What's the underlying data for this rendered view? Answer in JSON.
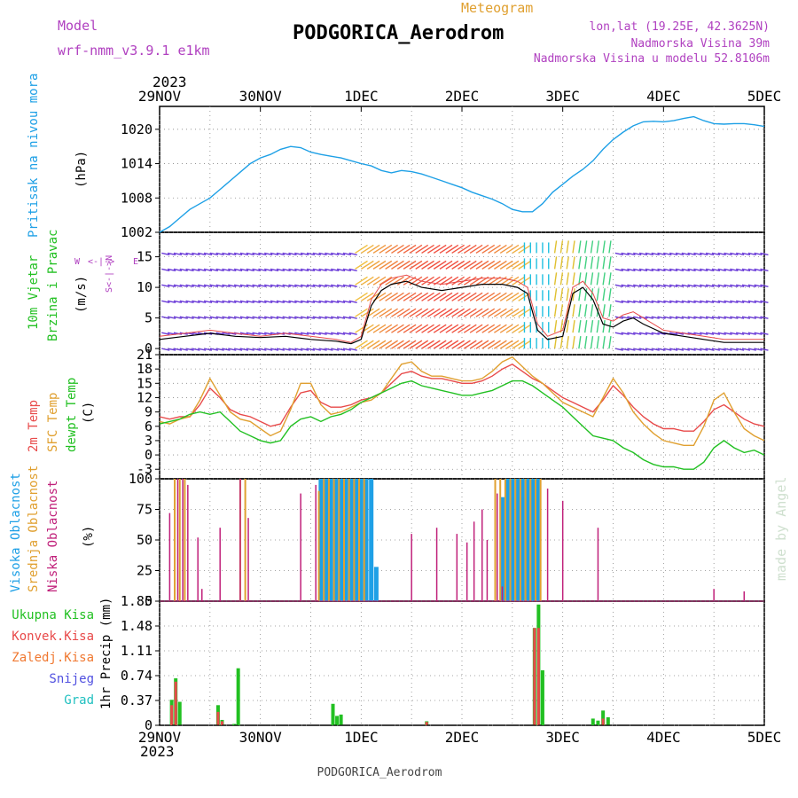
{
  "header": {
    "model_label": "Model",
    "model_name": "wrf-nmm_v3.9.1  e1km",
    "title": "PODGORICA_Aerodrom",
    "kind": "Meteogram",
    "lonlat": "lon,lat (19.25E, 42.3625N)",
    "elevation": "Nadmorska Visina 39m",
    "model_elevation": "Nadmorska Visina u modelu 52.8106m",
    "bottom_title": "PODGORICA_Aerodrom",
    "credit": "made by Angel"
  },
  "colors": {
    "pressure": "#1ea0e6",
    "wind_label": "#22c022",
    "temp2m": "#e84a4a",
    "sfc": "#e0a030",
    "dewpt": "#22c022",
    "cloud_high": "#1ea0e6",
    "cloud_mid": "#e0a030",
    "cloud_low": "#c0207a",
    "rain_total": "#22c022",
    "rain_conv": "#e84a4a",
    "rain_frz": "#f07830",
    "snow": "#5050e0",
    "hail": "#20c0c0",
    "purple": "#b040c0"
  },
  "time_axis": {
    "year": "2023",
    "labels": [
      "29NOV",
      "30NOV",
      "1DEC",
      "2DEC",
      "3DEC",
      "4DEC",
      "5DEC"
    ]
  },
  "chart_data": [
    {
      "type": "line",
      "panel": "pressure",
      "ylabel": "Pritisak na nivou mora",
      "unit": "(hPa)",
      "ylim": [
        1002,
        1024
      ],
      "yticks": [
        1002,
        1008,
        1014,
        1020
      ],
      "x": [
        0,
        0.1,
        0.2,
        0.3,
        0.4,
        0.5,
        0.6,
        0.7,
        0.8,
        0.9,
        1.0,
        1.1,
        1.2,
        1.3,
        1.4,
        1.5,
        1.6,
        1.7,
        1.8,
        1.9,
        2.0,
        2.1,
        2.2,
        2.3,
        2.4,
        2.5,
        2.6,
        2.7,
        2.8,
        2.9,
        3.0,
        3.1,
        3.2,
        3.3,
        3.4,
        3.5,
        3.6,
        3.7,
        3.8,
        3.9,
        4.0,
        4.1,
        4.2,
        4.3,
        4.4,
        4.5,
        4.6,
        4.7,
        4.8,
        4.9,
        5.0,
        5.1,
        5.2,
        5.3,
        5.4,
        5.5,
        5.6,
        5.7,
        5.8,
        5.9,
        6.0
      ],
      "values": [
        1002.0,
        1003.0,
        1004.5,
        1006.0,
        1007.0,
        1008.0,
        1009.5,
        1011.0,
        1012.5,
        1014.0,
        1015.0,
        1015.6,
        1016.5,
        1017.0,
        1016.8,
        1016.0,
        1015.6,
        1015.3,
        1015.0,
        1014.5,
        1014.0,
        1013.6,
        1012.8,
        1012.4,
        1012.8,
        1012.6,
        1012.2,
        1011.6,
        1011.0,
        1010.4,
        1009.8,
        1009.0,
        1008.4,
        1007.8,
        1007.0,
        1006.0,
        1005.6,
        1005.6,
        1007.0,
        1009.0,
        1010.4,
        1011.8,
        1013.0,
        1014.5,
        1016.5,
        1018.2,
        1019.5,
        1020.6,
        1021.3,
        1021.4,
        1021.3,
        1021.5,
        1021.9,
        1022.2,
        1021.5,
        1021.0,
        1020.9,
        1021.0,
        1021.0,
        1020.8,
        1020.5
      ]
    },
    {
      "type": "line",
      "panel": "wind",
      "ylabel": "10m Vjetar Brzina i Pravac",
      "unit": "(m/s)",
      "direction_legend": [
        "N",
        "<-",
        "|",
        "->",
        "W",
        "E",
        "S"
      ],
      "ylim": [
        -1,
        19
      ],
      "yticks": [
        0,
        5,
        10,
        15
      ],
      "x": [
        0,
        0.25,
        0.5,
        0.75,
        1.0,
        1.25,
        1.5,
        1.75,
        1.9,
        2.0,
        2.1,
        2.2,
        2.3,
        2.45,
        2.6,
        2.8,
        3.0,
        3.2,
        3.4,
        3.55,
        3.65,
        3.75,
        3.85,
        4.0,
        4.1,
        4.2,
        4.3,
        4.4,
        4.5,
        4.6,
        4.7,
        4.8,
        5.0,
        5.2,
        5.4,
        5.6,
        5.8,
        6.0
      ],
      "values": [
        1.5,
        2.0,
        2.5,
        2.0,
        1.8,
        2.0,
        1.5,
        1.2,
        0.8,
        1.5,
        7.0,
        9.5,
        10.5,
        11.0,
        10.0,
        9.5,
        10.0,
        10.5,
        10.5,
        10.0,
        9.0,
        3.0,
        1.5,
        2.0,
        9.0,
        10.0,
        8.0,
        4.0,
        3.5,
        4.5,
        5.0,
        4.0,
        2.5,
        2.0,
        1.5,
        1.0,
        1.0,
        1.0
      ],
      "gust_values": [
        2.0,
        2.5,
        3.0,
        2.5,
        2.0,
        2.5,
        2.0,
        1.5,
        1.0,
        2.0,
        8.0,
        10.5,
        11.5,
        12.0,
        11.0,
        10.5,
        11.0,
        11.5,
        11.5,
        11.0,
        10.0,
        4.0,
        2.0,
        3.0,
        10.0,
        11.0,
        9.0,
        5.0,
        4.5,
        5.5,
        6.0,
        5.0,
        3.0,
        2.5,
        2.0,
        1.5,
        1.5,
        1.5
      ]
    },
    {
      "type": "line",
      "panel": "temperature",
      "ylabel": "2m Temp / SFC Temp / dewpt Temp",
      "unit": "(C)",
      "ylim": [
        -5,
        21
      ],
      "yticks": [
        -3,
        0,
        3,
        6,
        9,
        12,
        15,
        18,
        21
      ],
      "series": [
        {
          "name": "2m Temp",
          "x": [
            0,
            0.1,
            0.2,
            0.3,
            0.4,
            0.5,
            0.6,
            0.7,
            0.8,
            0.9,
            1.0,
            1.1,
            1.2,
            1.3,
            1.4,
            1.5,
            1.6,
            1.7,
            1.8,
            1.9,
            2.0,
            2.1,
            2.2,
            2.3,
            2.4,
            2.5,
            2.6,
            2.7,
            2.8,
            2.9,
            3.0,
            3.1,
            3.2,
            3.3,
            3.4,
            3.5,
            3.6,
            3.7,
            3.8,
            3.9,
            4.0,
            4.1,
            4.2,
            4.3,
            4.4,
            4.5,
            4.6,
            4.7,
            4.8,
            4.9,
            5.0,
            5.1,
            5.2,
            5.3,
            5.4,
            5.5,
            5.6,
            5.7,
            5.8,
            5.9,
            6.0
          ],
          "values": [
            8.0,
            7.5,
            8.0,
            8.0,
            10.5,
            14.0,
            12.0,
            9.5,
            8.5,
            8.0,
            7.0,
            6.0,
            6.5,
            10.0,
            13.0,
            13.5,
            11.0,
            10.0,
            10.0,
            10.5,
            11.5,
            12.0,
            13.0,
            15.0,
            17.0,
            17.5,
            16.5,
            16.0,
            16.0,
            15.5,
            15.0,
            15.0,
            15.5,
            16.5,
            18.0,
            19.0,
            17.5,
            16.0,
            15.0,
            13.5,
            12.0,
            11.0,
            10.0,
            9.0,
            11.5,
            14.5,
            12.5,
            10.0,
            8.0,
            6.5,
            5.5,
            5.5,
            5.0,
            5.0,
            7.0,
            9.5,
            10.5,
            9.0,
            7.5,
            6.5,
            6.0
          ]
        },
        {
          "name": "SFC Temp",
          "x": [
            0,
            0.1,
            0.2,
            0.3,
            0.4,
            0.5,
            0.6,
            0.7,
            0.8,
            0.9,
            1.0,
            1.1,
            1.2,
            1.3,
            1.4,
            1.5,
            1.6,
            1.7,
            1.8,
            1.9,
            2.0,
            2.1,
            2.2,
            2.3,
            2.4,
            2.5,
            2.6,
            2.7,
            2.8,
            2.9,
            3.0,
            3.1,
            3.2,
            3.3,
            3.4,
            3.5,
            3.6,
            3.7,
            3.8,
            3.9,
            4.0,
            4.1,
            4.2,
            4.3,
            4.4,
            4.5,
            4.6,
            4.7,
            4.8,
            4.9,
            5.0,
            5.1,
            5.2,
            5.3,
            5.4,
            5.5,
            5.6,
            5.7,
            5.8,
            5.9,
            6.0
          ],
          "values": [
            7.0,
            6.5,
            7.5,
            8.0,
            11.5,
            16.0,
            12.5,
            9.0,
            7.5,
            7.0,
            5.5,
            4.0,
            5.0,
            9.5,
            15.0,
            15.0,
            10.5,
            8.5,
            9.0,
            10.0,
            11.0,
            11.5,
            13.0,
            16.0,
            19.0,
            19.5,
            17.5,
            16.5,
            16.5,
            16.0,
            15.5,
            15.5,
            16.0,
            17.5,
            19.5,
            20.5,
            18.5,
            16.5,
            15.0,
            13.0,
            11.0,
            10.0,
            9.0,
            8.0,
            12.0,
            16.0,
            13.0,
            9.0,
            6.5,
            4.5,
            3.0,
            2.5,
            2.0,
            2.0,
            6.0,
            11.5,
            13.0,
            9.0,
            5.5,
            4.0,
            3.0
          ]
        },
        {
          "name": "dewpt Temp",
          "x": [
            0,
            0.1,
            0.2,
            0.3,
            0.4,
            0.5,
            0.6,
            0.7,
            0.8,
            0.9,
            1.0,
            1.1,
            1.2,
            1.3,
            1.4,
            1.5,
            1.6,
            1.7,
            1.8,
            1.9,
            2.0,
            2.1,
            2.2,
            2.3,
            2.4,
            2.5,
            2.6,
            2.7,
            2.8,
            2.9,
            3.0,
            3.1,
            3.2,
            3.3,
            3.4,
            3.5,
            3.6,
            3.7,
            3.8,
            3.9,
            4.0,
            4.1,
            4.2,
            4.3,
            4.4,
            4.5,
            4.6,
            4.7,
            4.8,
            4.9,
            5.0,
            5.1,
            5.2,
            5.3,
            5.4,
            5.5,
            5.6,
            5.7,
            5.8,
            5.9,
            6.0
          ],
          "values": [
            6.5,
            7.0,
            7.5,
            8.5,
            9.0,
            8.5,
            9.0,
            7.0,
            5.0,
            4.0,
            3.0,
            2.5,
            3.0,
            6.0,
            7.5,
            8.0,
            7.0,
            8.0,
            8.5,
            9.5,
            11.0,
            12.0,
            13.0,
            14.0,
            15.0,
            15.5,
            14.5,
            14.0,
            13.5,
            13.0,
            12.5,
            12.5,
            13.0,
            13.5,
            14.5,
            15.5,
            15.5,
            14.5,
            13.0,
            11.5,
            10.0,
            8.0,
            6.0,
            4.0,
            3.5,
            3.0,
            1.5,
            0.5,
            -1.0,
            -2.0,
            -2.5,
            -2.5,
            -3.0,
            -3.0,
            -1.5,
            1.5,
            3.0,
            1.5,
            0.5,
            1.0,
            0.0
          ]
        }
      ]
    },
    {
      "type": "bar",
      "panel": "clouds",
      "ylabel": "Visoka Oblacnost / Srednja Oblacnost / Niska Oblacnost",
      "unit": "(%)",
      "ylim": [
        0,
        100
      ],
      "yticks": [
        0,
        25,
        50,
        75,
        100
      ],
      "series": [
        {
          "name": "Visoka Oblacnost",
          "x": [
            1.6,
            1.65,
            1.7,
            1.75,
            1.8,
            1.85,
            1.9,
            1.95,
            2.0,
            2.05,
            2.1,
            2.15,
            3.4,
            3.45,
            3.5,
            3.55,
            3.6,
            3.65,
            3.7,
            3.75
          ],
          "values": [
            100,
            100,
            100,
            100,
            100,
            100,
            100,
            100,
            100,
            100,
            100,
            28,
            85,
            100,
            100,
            100,
            100,
            100,
            100,
            100
          ]
        },
        {
          "name": "Srednja Oblacnost",
          "x": [
            0.15,
            0.2,
            0.25,
            0.8,
            0.85,
            1.58,
            1.63,
            1.68,
            1.73,
            1.78,
            1.83,
            1.88,
            1.93,
            1.98,
            2.03,
            3.33,
            3.38,
            3.43,
            3.48,
            3.53,
            3.58,
            3.63,
            3.68,
            3.73,
            3.78
          ],
          "values": [
            100,
            100,
            100,
            100,
            100,
            90,
            100,
            100,
            100,
            100,
            100,
            100,
            100,
            100,
            100,
            100,
            100,
            100,
            100,
            100,
            100,
            100,
            100,
            100,
            100
          ]
        },
        {
          "name": "Niska Oblacnost",
          "x": [
            0.1,
            0.18,
            0.23,
            0.28,
            0.38,
            0.42,
            0.6,
            0.8,
            0.88,
            1.4,
            1.55,
            3.2,
            2.5,
            2.75,
            2.95,
            3.05,
            3.12,
            3.25,
            3.35,
            3.4,
            3.85,
            4.0,
            4.35,
            5.5,
            5.8
          ],
          "values": [
            72,
            100,
            100,
            95,
            52,
            10,
            60,
            100,
            68,
            88,
            95,
            75,
            55,
            60,
            55,
            48,
            65,
            50,
            88,
            12,
            92,
            82,
            60,
            10,
            8
          ]
        }
      ]
    },
    {
      "type": "bar",
      "panel": "precip",
      "ylabel": "1hr Precip (mm)",
      "ylim": [
        0,
        1.85
      ],
      "yticks": [
        0,
        0.37,
        0.74,
        1.11,
        1.48,
        1.85
      ],
      "legend": [
        "Ukupna Kisa",
        "Konvek.Kisa",
        "Zaledj.Kisa",
        "Snijeg",
        "Grad"
      ],
      "series": [
        {
          "name": "Ukupna Kisa",
          "x": [
            0.12,
            0.16,
            0.2,
            0.58,
            0.62,
            0.74,
            0.78,
            1.72,
            1.76,
            1.8,
            2.65,
            3.72,
            3.76,
            3.8,
            4.3,
            4.35,
            4.4,
            4.45
          ],
          "values": [
            0.38,
            0.7,
            0.35,
            0.3,
            0.08,
            0.02,
            0.85,
            0.32,
            0.14,
            0.16,
            0.06,
            1.45,
            1.8,
            0.82,
            0.1,
            0.07,
            0.22,
            0.12
          ]
        },
        {
          "name": "Konvek.Kisa",
          "x": [
            0.12,
            0.16,
            0.58,
            0.62,
            2.65,
            3.72,
            3.76,
            4.4
          ],
          "values": [
            0.3,
            0.65,
            0.2,
            0.06,
            0.05,
            1.45,
            1.45,
            0.1
          ]
        }
      ]
    }
  ]
}
